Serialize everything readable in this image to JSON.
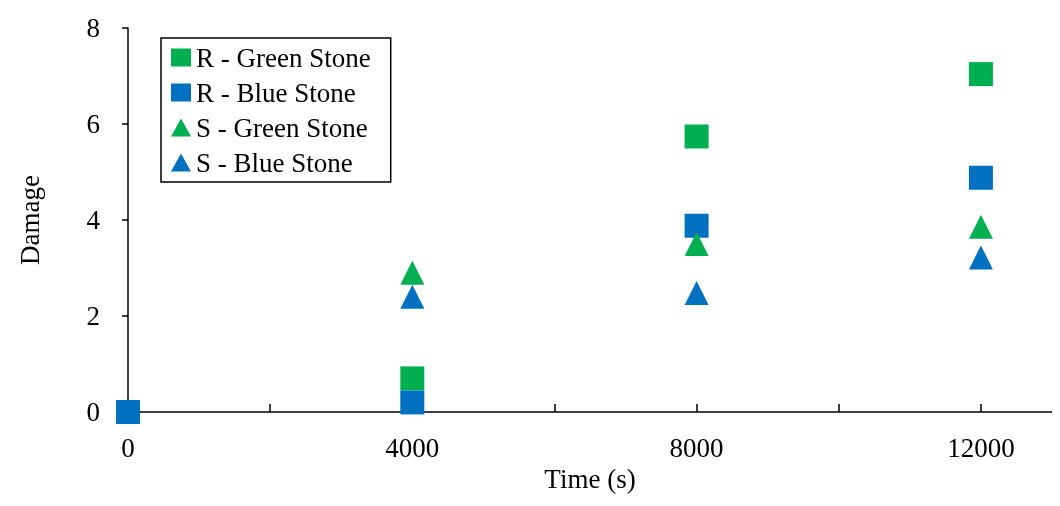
{
  "chart_data": {
    "type": "scatter",
    "xlabel": "Time (s)",
    "ylabel": "Damage",
    "xlim": [
      0,
      13000
    ],
    "xticks": [
      0,
      {
        "value": 2000,
        "label": null
      },
      4000,
      {
        "value": 6000,
        "label": null
      },
      8000,
      {
        "value": 10000,
        "label": null
      },
      12000
    ],
    "ylim": [
      0,
      8
    ],
    "yticks": [
      0,
      2,
      4,
      6,
      8
    ],
    "grid": false,
    "legend": "top left",
    "series": [
      {
        "name": "R - Green Stone",
        "color": "#00b050",
        "marker": "square",
        "x": [
          4000,
          8000,
          12000
        ],
        "values": [
          0.7,
          5.74,
          7.04
        ]
      },
      {
        "name": "R - Blue Stone",
        "color": "#0070c0",
        "marker": "square",
        "x": [
          0,
          4000,
          8000,
          12000
        ],
        "values": [
          0,
          0.2,
          3.88,
          4.88
        ]
      },
      {
        "name": "S - Green Stone",
        "color": "#00b050",
        "marker": "triangle",
        "x": [
          4000,
          8000,
          12000
        ],
        "values": [
          2.9,
          3.5,
          3.86
        ]
      },
      {
        "name": "S - Blue Stone",
        "color": "#0070c0",
        "marker": "triangle",
        "x": [
          4000,
          8000,
          12000
        ],
        "values": [
          2.4,
          2.48,
          3.22
        ]
      }
    ]
  }
}
